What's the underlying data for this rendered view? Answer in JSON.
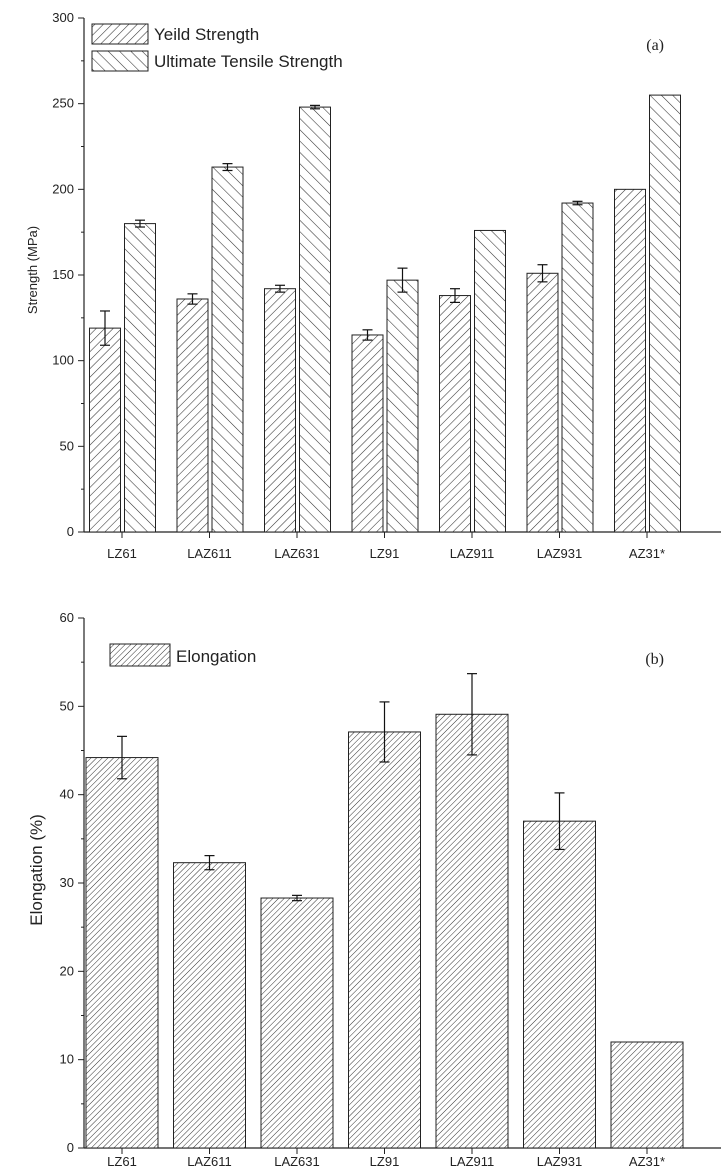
{
  "chart_data": [
    {
      "type": "bar",
      "panel_label": "(a)",
      "ylabel": "Strength (MPa)",
      "xlabel": "",
      "ylim": [
        0,
        300
      ],
      "yticks": [
        0,
        50,
        100,
        150,
        200,
        250,
        300
      ],
      "grid": false,
      "legend_position": "top-left",
      "categories": [
        "LZ61",
        "LAZ611",
        "LAZ631",
        "LZ91",
        "LAZ911",
        "LAZ931",
        "AZ31*"
      ],
      "series": [
        {
          "name": "Yeild Strength",
          "pattern": "diagonal-right",
          "values": [
            119,
            136,
            142,
            115,
            138,
            151,
            200
          ],
          "errors": [
            10,
            3,
            2,
            3,
            4,
            5,
            0
          ]
        },
        {
          "name": "Ultimate Tensile Strength",
          "pattern": "diagonal-left",
          "values": [
            180,
            213,
            248,
            147,
            176,
            192,
            255
          ],
          "errors": [
            2,
            2,
            1,
            7,
            0,
            1,
            0
          ]
        }
      ]
    },
    {
      "type": "bar",
      "panel_label": "(b)",
      "ylabel": "Elongation (%)",
      "xlabel": "",
      "ylim": [
        0,
        60
      ],
      "yticks": [
        0,
        10,
        20,
        30,
        40,
        50,
        60
      ],
      "grid": false,
      "legend_position": "top-left",
      "categories": [
        "LZ61",
        "LAZ611",
        "LAZ631",
        "LZ91",
        "LAZ911",
        "LAZ931",
        "AZ31*"
      ],
      "series": [
        {
          "name": "Elongation",
          "pattern": "fine-diagonal",
          "values": [
            44.2,
            32.3,
            28.3,
            47.1,
            49.1,
            37.0,
            12.0
          ],
          "errors": [
            2.4,
            0.8,
            0.3,
            3.4,
            4.6,
            3.2,
            0
          ]
        }
      ]
    }
  ]
}
